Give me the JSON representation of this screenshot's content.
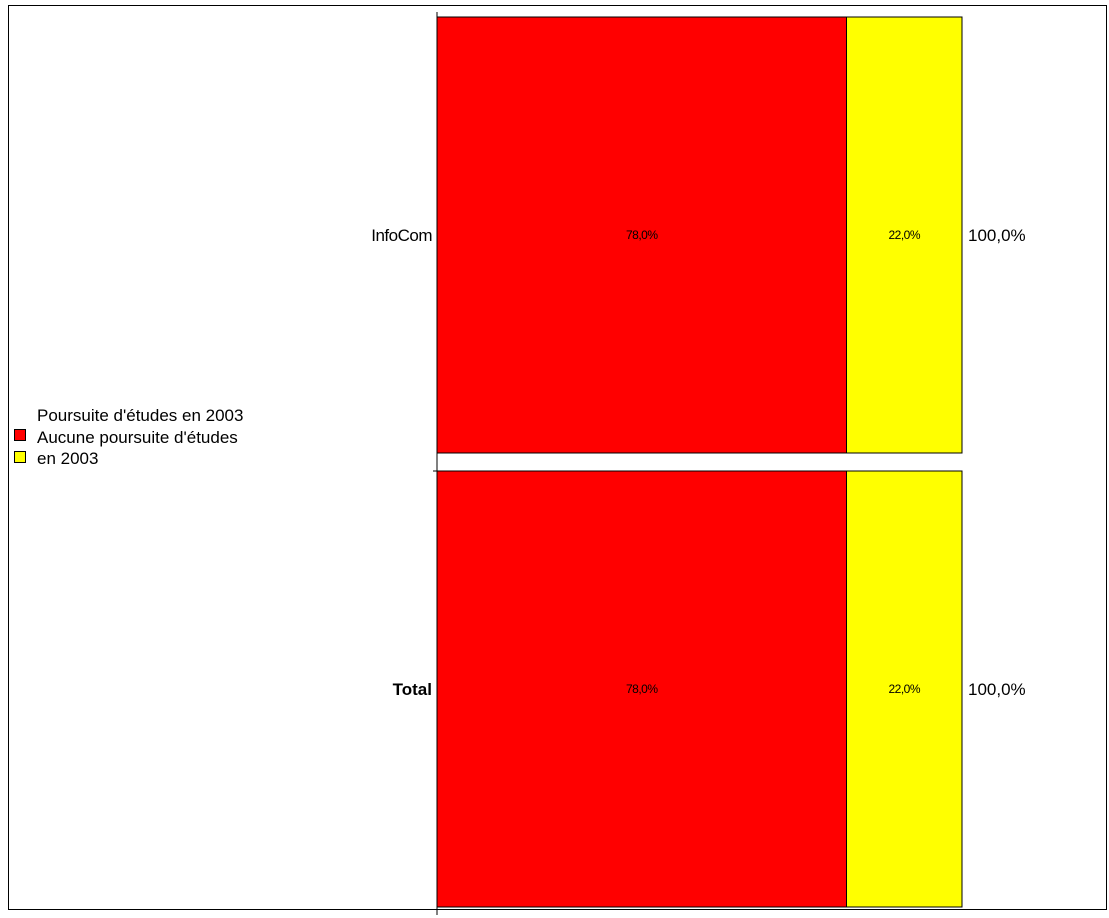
{
  "chart_data": {
    "type": "bar",
    "orientation": "horizontal",
    "stacked": true,
    "percent": true,
    "categories": [
      "InfoCom",
      "Total"
    ],
    "category_bold": [
      false,
      true
    ],
    "series": [
      {
        "name": "Poursuite d'études en 2003",
        "values": [
          78.0,
          78.0
        ],
        "labels": [
          "78,0%",
          "78,0%"
        ],
        "color": "#ff0000"
      },
      {
        "name": "Aucune poursuite d'études en 2003",
        "values": [
          22.0,
          22.0
        ],
        "labels": [
          "22,0%",
          "22,0%"
        ],
        "color": "#ffff00"
      }
    ],
    "totals": [
      "100,0%",
      "100,0%"
    ],
    "xlim": [
      0,
      100
    ],
    "grid": false,
    "legend": "left"
  },
  "legend": {
    "items": [
      {
        "label": "Poursuite d'études en 2003",
        "color": "#ff0000"
      },
      {
        "label": "Aucune poursuite d'études en 2003",
        "color": "#ffff00"
      }
    ]
  }
}
